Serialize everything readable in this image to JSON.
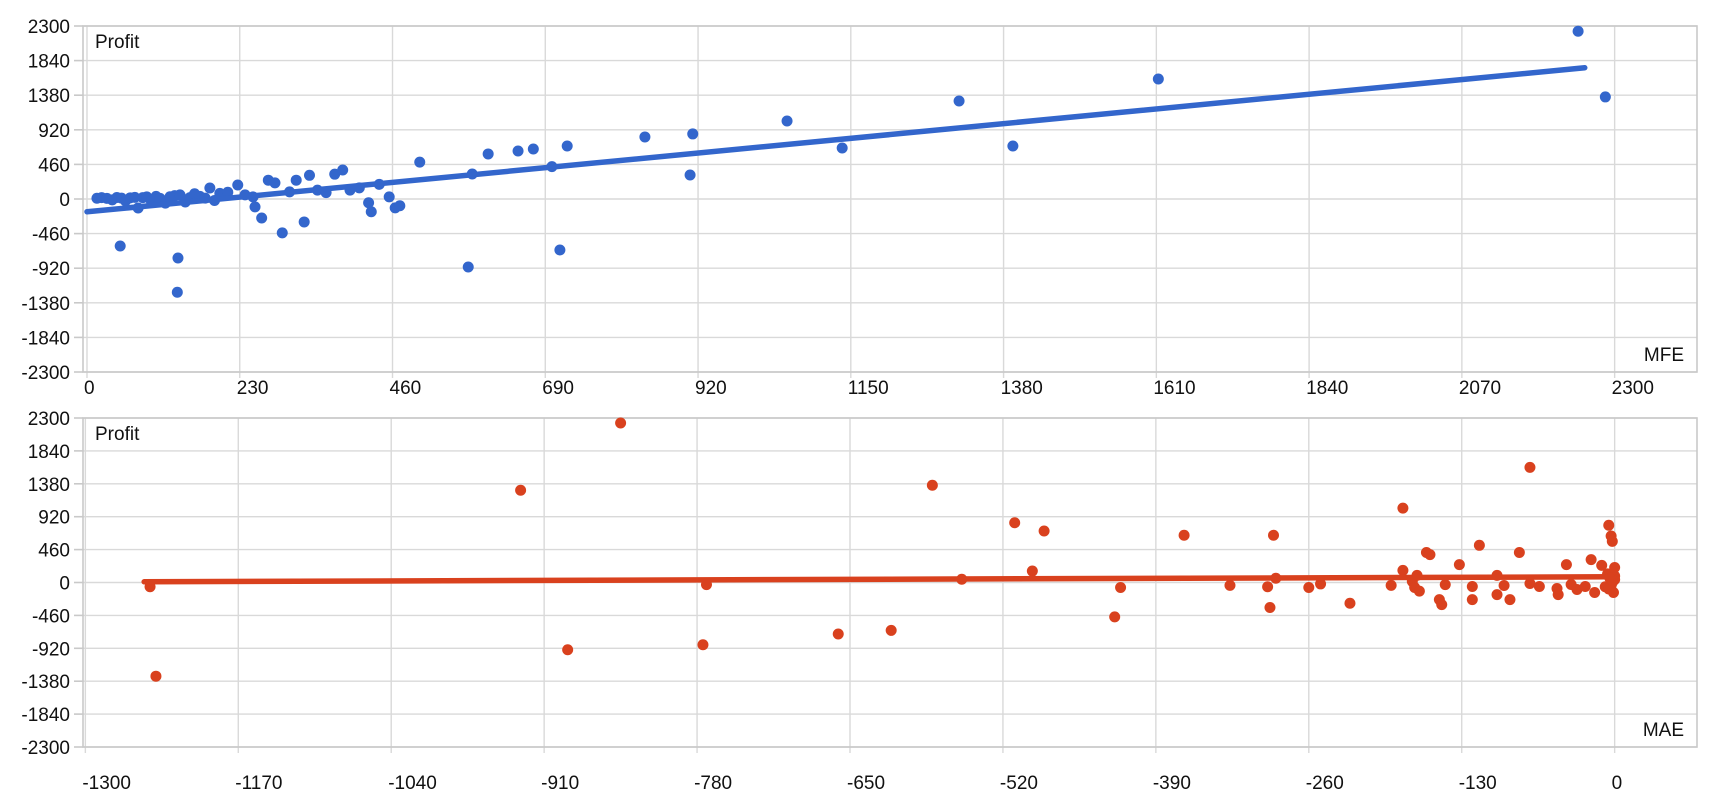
{
  "colors": {
    "background": "#ffffff",
    "gridline": "#d9d9d9",
    "plot_border": "#c9c9c9",
    "tick": "#c9c9c9",
    "axis_label": "#111111",
    "series_mfe": "#3366cc",
    "series_mae": "#d9411e"
  },
  "chart_data": [
    {
      "type": "scatter",
      "title": "Profit",
      "xlabel": "MFE",
      "ylabel": "Profit",
      "legend": "none",
      "grid": true,
      "color": "#3366cc",
      "x_ticks": [
        0,
        230,
        460,
        690,
        920,
        1150,
        1380,
        1610,
        1840,
        2070,
        2300
      ],
      "y_ticks": [
        2300,
        1840,
        1380,
        920,
        460,
        0,
        -460,
        -920,
        -1380,
        -1840,
        -2300
      ],
      "xlim": [
        -6,
        2424
      ],
      "ylim": [
        -2300,
        2300
      ],
      "trendline": {
        "x": [
          0,
          2255
        ],
        "y": [
          -170,
          1745
        ]
      },
      "points": [
        [
          15,
          10
        ],
        [
          22,
          18
        ],
        [
          30,
          8
        ],
        [
          38,
          -12
        ],
        [
          45,
          20
        ],
        [
          52,
          12
        ],
        [
          58,
          -25
        ],
        [
          65,
          15
        ],
        [
          72,
          22
        ],
        [
          77,
          -120
        ],
        [
          84,
          18
        ],
        [
          90,
          28
        ],
        [
          97,
          -30
        ],
        [
          104,
          35
        ],
        [
          110,
          8
        ],
        [
          118,
          -55
        ],
        [
          125,
          30
        ],
        [
          132,
          45
        ],
        [
          140,
          55
        ],
        [
          148,
          -40
        ],
        [
          155,
          18
        ],
        [
          162,
          70
        ],
        [
          170,
          35
        ],
        [
          178,
          12
        ],
        [
          185,
          146
        ],
        [
          192,
          -20
        ],
        [
          200,
          75
        ],
        [
          212,
          90
        ],
        [
          227,
          186
        ],
        [
          238,
          55
        ],
        [
          250,
          28
        ],
        [
          253,
          -105
        ],
        [
          263,
          -253
        ],
        [
          273,
          250
        ],
        [
          283,
          215
        ],
        [
          294,
          -450
        ],
        [
          305,
          95
        ],
        [
          315,
          250
        ],
        [
          327,
          -305
        ],
        [
          335,
          315
        ],
        [
          347,
          118
        ],
        [
          360,
          85
        ],
        [
          373,
          330
        ],
        [
          385,
          385
        ],
        [
          396,
          118
        ],
        [
          410,
          148
        ],
        [
          424,
          -50
        ],
        [
          428,
          -170
        ],
        [
          440,
          195
        ],
        [
          455,
          28
        ],
        [
          464,
          -118
        ],
        [
          471,
          -90
        ],
        [
          501,
          490
        ],
        [
          580,
          333
        ],
        [
          604,
          599
        ],
        [
          649,
          638
        ],
        [
          672,
          665
        ],
        [
          700,
          430
        ],
        [
          723,
          705
        ],
        [
          712,
          -678
        ],
        [
          574,
          -904
        ],
        [
          840,
          825
        ],
        [
          908,
          319
        ],
        [
          912,
          865
        ],
        [
          1054,
          1037
        ],
        [
          1137,
          678
        ],
        [
          1313,
          1303
        ],
        [
          1394,
          705
        ],
        [
          1613,
          1596
        ],
        [
          2245,
          2230
        ],
        [
          2286,
          1357
        ],
        [
          50,
          -625
        ],
        [
          137,
          -785
        ],
        [
          136,
          -1240
        ]
      ]
    },
    {
      "type": "scatter",
      "title": "Profit",
      "xlabel": "MAE",
      "ylabel": "Profit",
      "legend": "none",
      "grid": true,
      "color": "#d9411e",
      "x_ticks": [
        -1300,
        -1170,
        -1040,
        -910,
        -780,
        -650,
        -520,
        -390,
        -260,
        -130,
        0
      ],
      "y_ticks": [
        2300,
        1840,
        1380,
        920,
        460,
        0,
        -460,
        -920,
        -1380,
        -1840,
        -2300
      ],
      "xlim": [
        -1302,
        70
      ],
      "ylim": [
        -2300,
        2300
      ],
      "trendline": {
        "x": [
          -1250,
          -2
        ],
        "y": [
          10,
          80
        ]
      },
      "points": [
        [
          -1245,
          -60
        ],
        [
          -1240,
          -1310
        ],
        [
          -930,
          1290
        ],
        [
          -890,
          -940
        ],
        [
          -845,
          2230
        ],
        [
          -775,
          -870
        ],
        [
          -772,
          -30
        ],
        [
          -660,
          -720
        ],
        [
          -615,
          -670
        ],
        [
          -580,
          1360
        ],
        [
          -555,
          45
        ],
        [
          -510,
          835
        ],
        [
          -495,
          160
        ],
        [
          -485,
          720
        ],
        [
          -425,
          -480
        ],
        [
          -420,
          -70
        ],
        [
          -366,
          660
        ],
        [
          -327,
          -40
        ],
        [
          -295,
          -60
        ],
        [
          -293,
          -350
        ],
        [
          -290,
          660
        ],
        [
          -288,
          60
        ],
        [
          -260,
          -70
        ],
        [
          -250,
          -20
        ],
        [
          -225,
          -290
        ],
        [
          -190,
          -40
        ],
        [
          -180,
          170
        ],
        [
          -180,
          1040
        ],
        [
          -172,
          15
        ],
        [
          -170,
          -70
        ],
        [
          -168,
          100
        ],
        [
          -166,
          -120
        ],
        [
          -160,
          420
        ],
        [
          -157,
          390
        ],
        [
          -149,
          -240
        ],
        [
          -147,
          -310
        ],
        [
          -144,
          -30
        ],
        [
          -132,
          250
        ],
        [
          -121,
          -56
        ],
        [
          -121,
          -240
        ],
        [
          -115,
          520
        ],
        [
          -100,
          100
        ],
        [
          -100,
          -170
        ],
        [
          -94,
          -42
        ],
        [
          -89,
          -240
        ],
        [
          -81,
          420
        ],
        [
          -72,
          1610
        ],
        [
          -72,
          -14
        ],
        [
          -64,
          -56
        ],
        [
          -49,
          -84
        ],
        [
          -48,
          -170
        ],
        [
          -41,
          250
        ],
        [
          -37,
          -28
        ],
        [
          -32,
          -98
        ],
        [
          -25,
          -56
        ],
        [
          -20,
          320
        ],
        [
          -17,
          -140
        ],
        [
          -11,
          240
        ],
        [
          -8,
          -60
        ],
        [
          -6,
          120
        ],
        [
          -5,
          800
        ],
        [
          -3,
          650
        ],
        [
          -2,
          575
        ],
        [
          0,
          90
        ],
        [
          0,
          40
        ],
        [
          -2,
          0
        ],
        [
          -3,
          -40
        ],
        [
          -5,
          -90
        ],
        [
          -1,
          -140
        ],
        [
          -4,
          60
        ],
        [
          -2,
          30
        ],
        [
          0,
          210
        ]
      ]
    }
  ]
}
